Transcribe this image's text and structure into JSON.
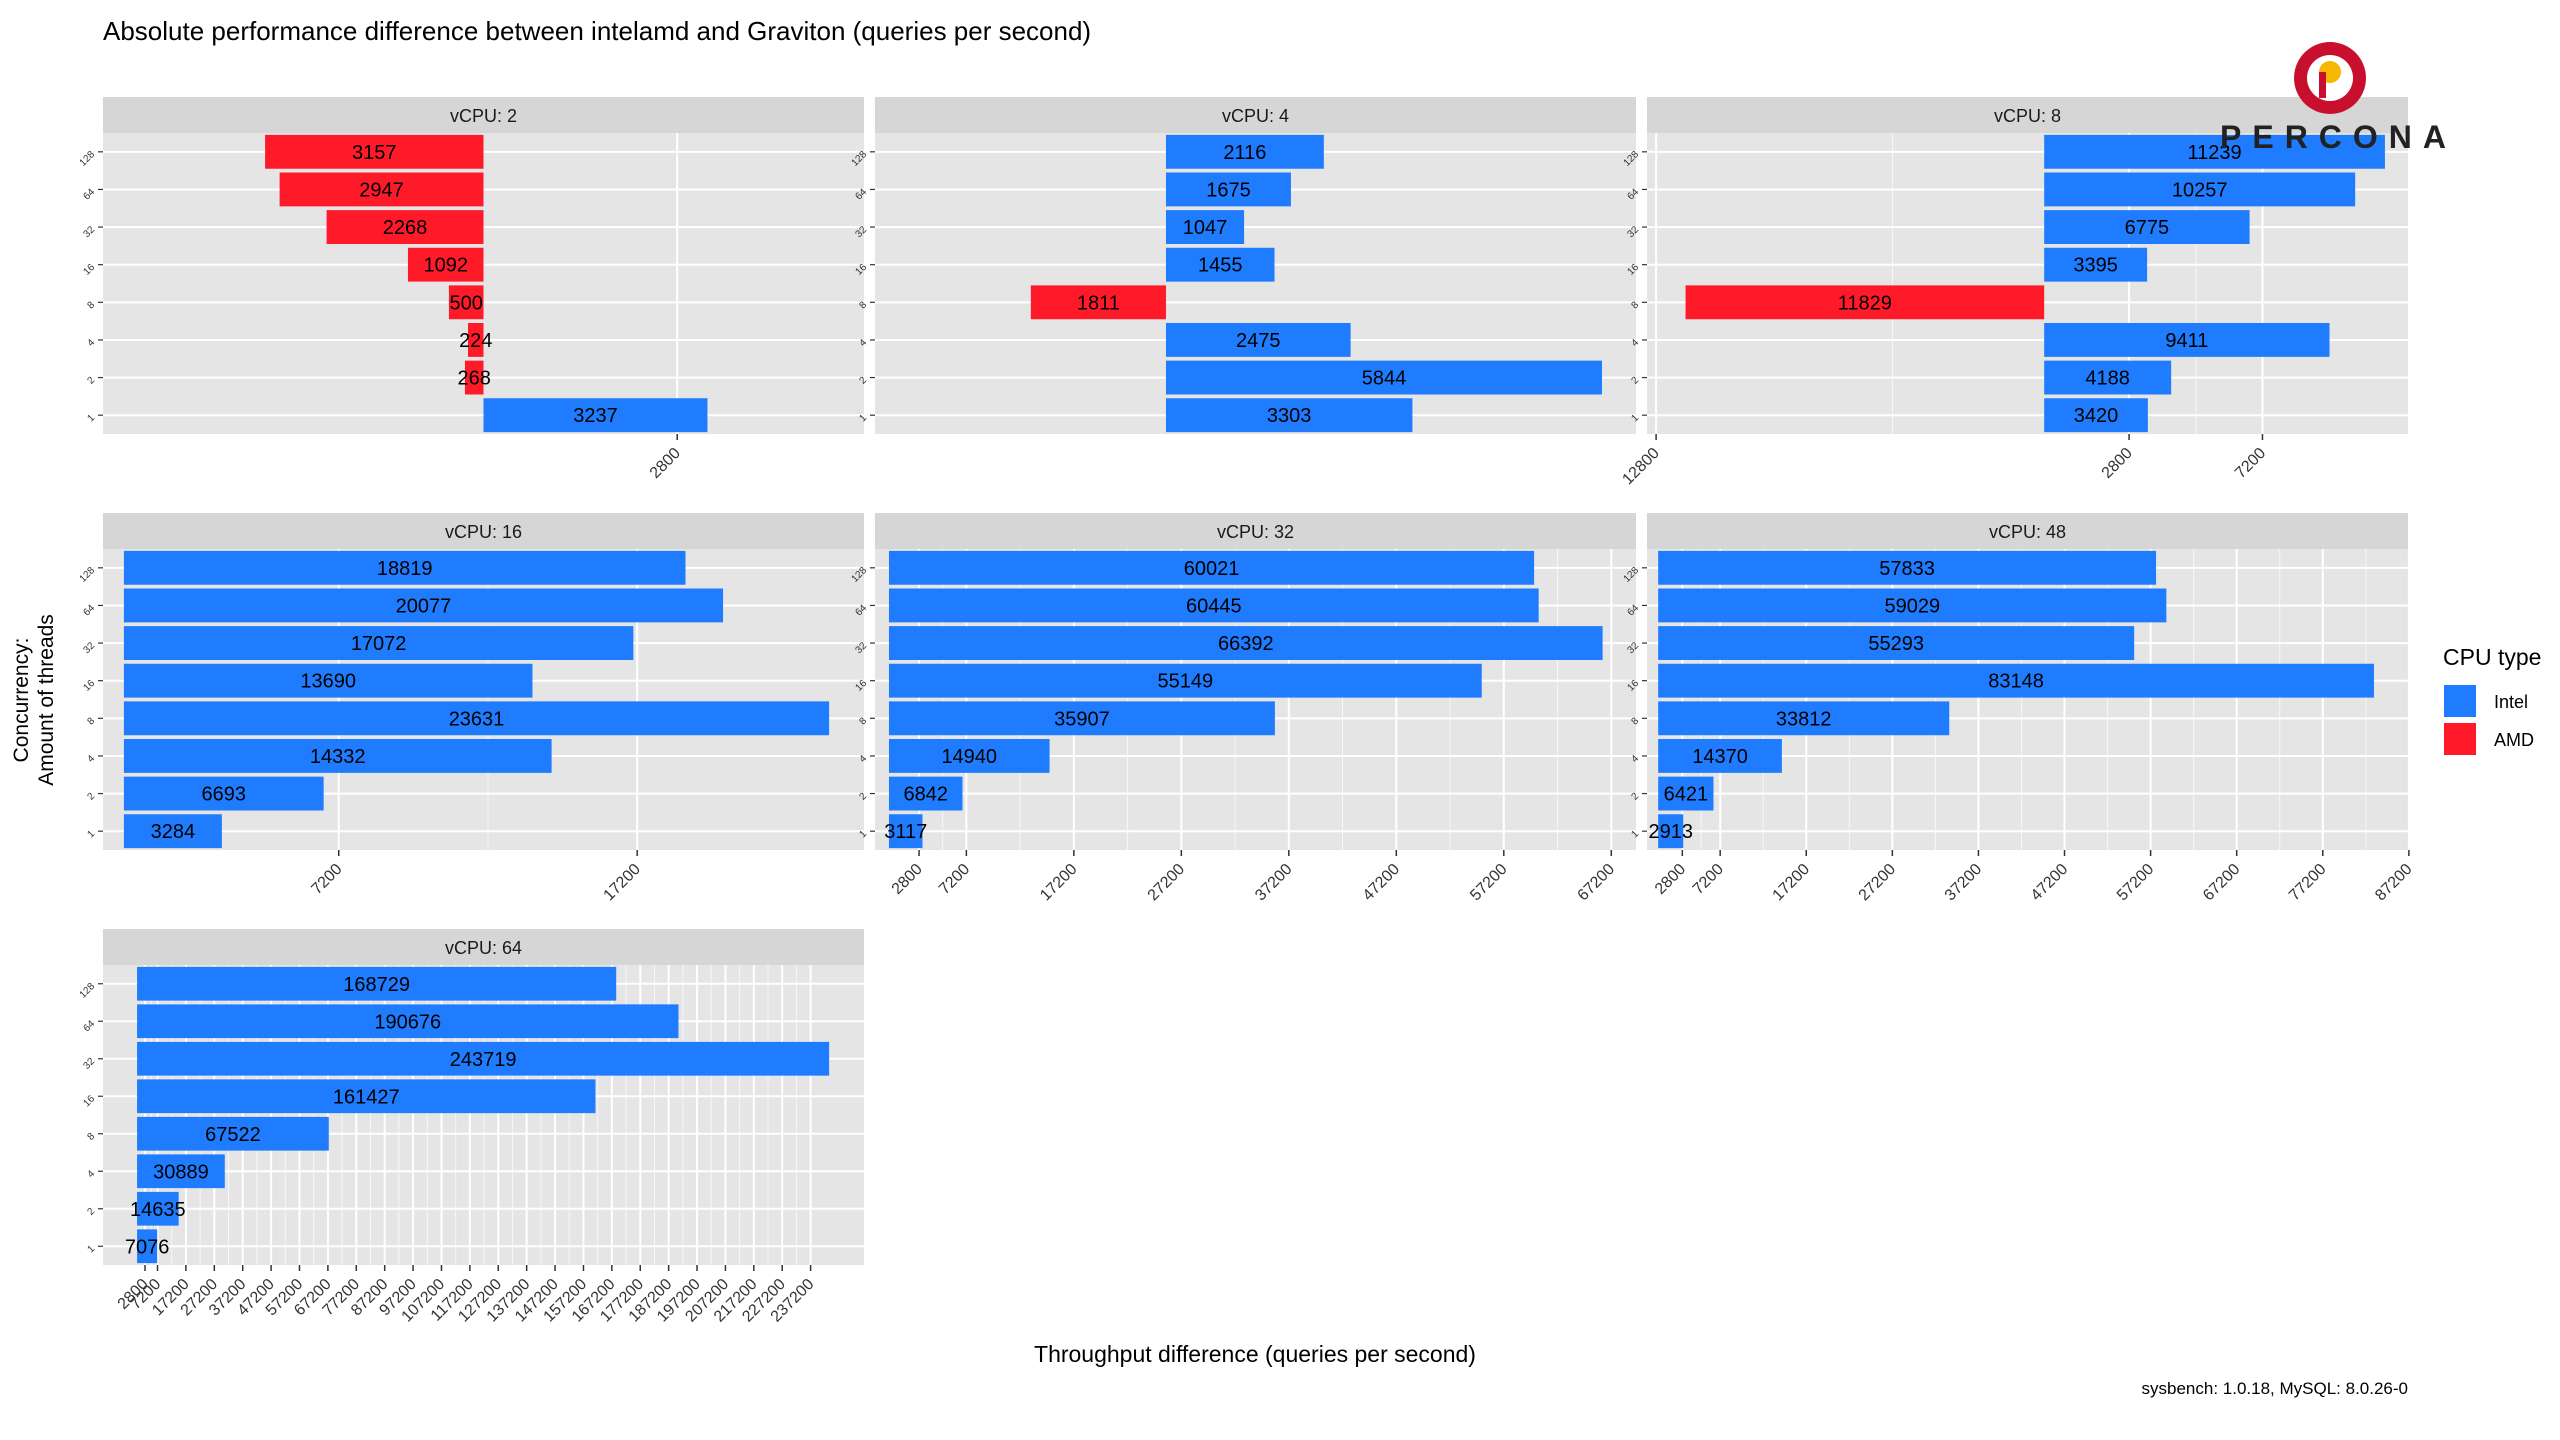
{
  "title": "Absolute performance difference between intelamd and Graviton (queries per second)",
  "y_axis_title_line1": "Concurrency:",
  "y_axis_title_line2": "Amount of threads",
  "x_axis_title": "Throughput difference (queries per second)",
  "caption": "sysbench: 1.0.18, MySQL: 8.0.26-0",
  "logo_text": "PERCONA",
  "legend": {
    "title": "CPU type",
    "items": [
      {
        "label": "Intel",
        "color": "#1f7cff"
      },
      {
        "label": "AMD",
        "color": "#ff1a2a"
      }
    ]
  },
  "colors": {
    "panel_bg": "#e5e5e5",
    "strip_bg": "#d6d6d6",
    "grid": "#ffffff",
    "logo_red": "#c8102e",
    "logo_yellow": "#f5b700"
  },
  "chart_data": {
    "type": "bar",
    "orientation": "horizontal",
    "categories": [
      "1",
      "2",
      "4",
      "8",
      "16",
      "32",
      "64",
      "128"
    ],
    "panels": [
      {
        "label": "vCPU: 2",
        "xlim": [
          -5500,
          5500
        ],
        "ticks": [
          2800
        ],
        "bars": [
          {
            "cat": "1",
            "type": "Intel",
            "value": 3237
          },
          {
            "cat": "2",
            "type": "AMD",
            "value": 268
          },
          {
            "cat": "4",
            "type": "AMD",
            "value": 224
          },
          {
            "cat": "8",
            "type": "AMD",
            "value": 500
          },
          {
            "cat": "16",
            "type": "AMD",
            "value": 1092
          },
          {
            "cat": "32",
            "type": "AMD",
            "value": 2268
          },
          {
            "cat": "64",
            "type": "AMD",
            "value": 2947
          },
          {
            "cat": "128",
            "type": "AMD",
            "value": 3157
          }
        ]
      },
      {
        "label": "vCPU: 4",
        "xlim": [
          -3900,
          6300
        ],
        "ticks": [],
        "bars": [
          {
            "cat": "1",
            "type": "Intel",
            "value": 3303
          },
          {
            "cat": "2",
            "type": "Intel",
            "value": 5844
          },
          {
            "cat": "4",
            "type": "Intel",
            "value": 2475
          },
          {
            "cat": "8",
            "type": "AMD",
            "value": 1811
          },
          {
            "cat": "16",
            "type": "Intel",
            "value": 1455
          },
          {
            "cat": "32",
            "type": "Intel",
            "value": 1047
          },
          {
            "cat": "64",
            "type": "Intel",
            "value": 1675
          },
          {
            "cat": "128",
            "type": "Intel",
            "value": 2116
          }
        ]
      },
      {
        "label": "vCPU: 8",
        "xlim": [
          -13100,
          12000
        ],
        "ticks": [
          -12800,
          2800,
          7200
        ],
        "tick_labels": [
          "12800",
          "2800",
          "7200"
        ],
        "bars": [
          {
            "cat": "1",
            "type": "Intel",
            "value": 3420
          },
          {
            "cat": "2",
            "type": "Intel",
            "value": 4188
          },
          {
            "cat": "4",
            "type": "Intel",
            "value": 9411
          },
          {
            "cat": "8",
            "type": "AMD",
            "value": 11829
          },
          {
            "cat": "16",
            "type": "Intel",
            "value": 3395
          },
          {
            "cat": "32",
            "type": "Intel",
            "value": 6775
          },
          {
            "cat": "64",
            "type": "Intel",
            "value": 10257
          },
          {
            "cat": "128",
            "type": "Intel",
            "value": 11239
          }
        ]
      },
      {
        "label": "vCPU: 16",
        "xlim": [
          -700,
          24800
        ],
        "ticks": [
          7200,
          17200
        ],
        "bars": [
          {
            "cat": "1",
            "type": "Intel",
            "value": 3284
          },
          {
            "cat": "2",
            "type": "Intel",
            "value": 6693
          },
          {
            "cat": "4",
            "type": "Intel",
            "value": 14332
          },
          {
            "cat": "8",
            "type": "Intel",
            "value": 23631
          },
          {
            "cat": "16",
            "type": "Intel",
            "value": 13690
          },
          {
            "cat": "32",
            "type": "Intel",
            "value": 17072
          },
          {
            "cat": "64",
            "type": "Intel",
            "value": 20077
          },
          {
            "cat": "128",
            "type": "Intel",
            "value": 18819
          }
        ]
      },
      {
        "label": "vCPU: 32",
        "xlim": [
          -1300,
          69500
        ],
        "ticks": [
          2800,
          7200,
          17200,
          27200,
          37200,
          47200,
          57200,
          67200
        ],
        "bars": [
          {
            "cat": "1",
            "type": "Intel",
            "value": 3117
          },
          {
            "cat": "2",
            "type": "Intel",
            "value": 6842
          },
          {
            "cat": "4",
            "type": "Intel",
            "value": 14940
          },
          {
            "cat": "8",
            "type": "Intel",
            "value": 35907
          },
          {
            "cat": "16",
            "type": "Intel",
            "value": 55149
          },
          {
            "cat": "32",
            "type": "Intel",
            "value": 66392
          },
          {
            "cat": "64",
            "type": "Intel",
            "value": 60445
          },
          {
            "cat": "128",
            "type": "Intel",
            "value": 60021
          }
        ]
      },
      {
        "label": "vCPU: 48",
        "xlim": [
          -1300,
          87100
        ],
        "ticks": [
          2800,
          7200,
          17200,
          27200,
          37200,
          47200,
          57200,
          67200,
          77200,
          87200
        ],
        "bars": [
          {
            "cat": "1",
            "type": "Intel",
            "value": 2913
          },
          {
            "cat": "2",
            "type": "Intel",
            "value": 6421
          },
          {
            "cat": "4",
            "type": "Intel",
            "value": 14370
          },
          {
            "cat": "8",
            "type": "Intel",
            "value": 33812
          },
          {
            "cat": "16",
            "type": "Intel",
            "value": 83148
          },
          {
            "cat": "32",
            "type": "Intel",
            "value": 55293
          },
          {
            "cat": "64",
            "type": "Intel",
            "value": 59029
          },
          {
            "cat": "128",
            "type": "Intel",
            "value": 57833
          }
        ]
      },
      {
        "label": "vCPU: 64",
        "xlim": [
          -12000,
          256000
        ],
        "ticks": [
          2800,
          7200,
          17200,
          27200,
          37200,
          47200,
          57200,
          67200,
          77200,
          87200,
          97200,
          107200,
          117200,
          127200,
          137200,
          147200,
          157200,
          167200,
          177200,
          187200,
          197200,
          207200,
          217200,
          227200,
          237200
        ],
        "bars": [
          {
            "cat": "1",
            "type": "Intel",
            "value": 7076
          },
          {
            "cat": "2",
            "type": "Intel",
            "value": 14635
          },
          {
            "cat": "4",
            "type": "Intel",
            "value": 30889
          },
          {
            "cat": "8",
            "type": "Intel",
            "value": 67522
          },
          {
            "cat": "16",
            "type": "Intel",
            "value": 161427
          },
          {
            "cat": "32",
            "type": "Intel",
            "value": 243719
          },
          {
            "cat": "64",
            "type": "Intel",
            "value": 190676
          },
          {
            "cat": "128",
            "type": "Intel",
            "value": 168729
          }
        ]
      }
    ]
  }
}
